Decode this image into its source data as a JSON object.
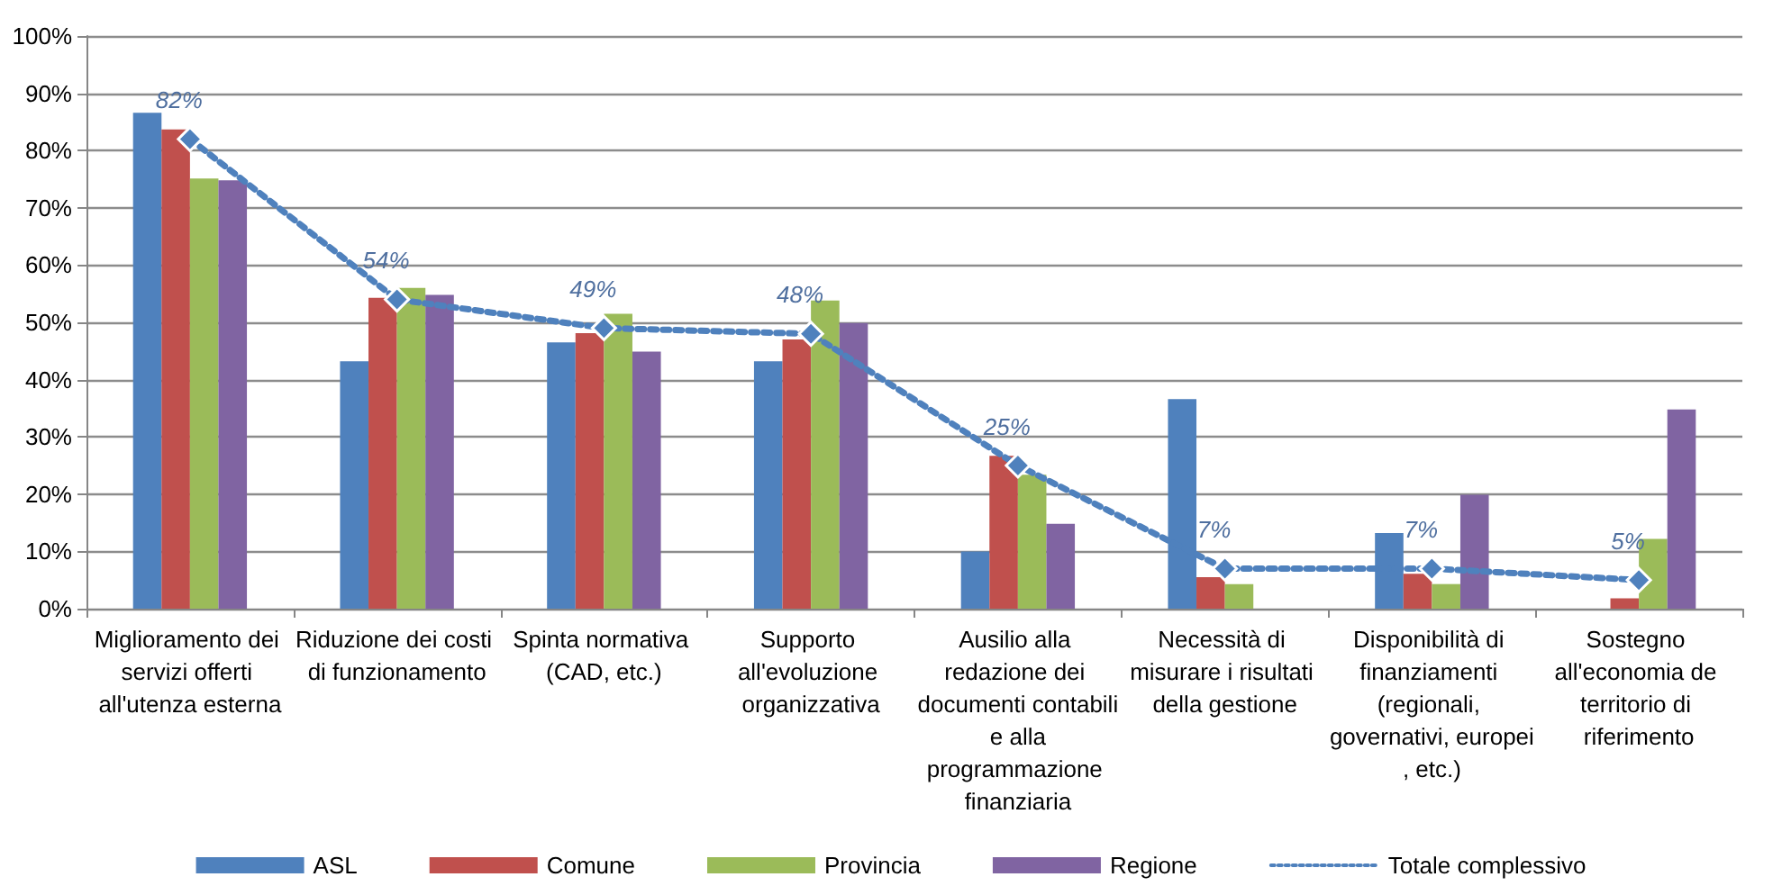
{
  "chart_data": {
    "type": "bar",
    "categories": [
      "Miglioramento dei servizi offerti all'utenza esterna",
      "Riduzione dei costi di funzionamento",
      "Spinta normativa (CAD, etc.)",
      "Supporto all'evoluzione organizzativa",
      "Ausilio alla redazione dei documenti contabili e alla programmazione finanziaria",
      "Necessità di misurare i risultati della gestione",
      "Disponibilità di finanziamenti (regionali, governativi, europei, etc.)",
      "Sostegno all'economia de territorio di riferimento"
    ],
    "series": [
      {
        "name": "ASL",
        "color": "#4f81bd",
        "values": [
          86.6,
          43.2,
          46.5,
          43.2,
          10,
          36.6,
          13.2,
          null
        ]
      },
      {
        "name": "Comune",
        "color": "#c0504d",
        "values": [
          83.7,
          54.3,
          48.1,
          47,
          26.7,
          5.5,
          6.1,
          1.8
        ]
      },
      {
        "name": "Provincia",
        "color": "#9bbb59",
        "values": [
          75.1,
          56,
          51.5,
          53.8,
          23.4,
          4.3,
          4.3,
          12.2
        ]
      },
      {
        "name": "Regione",
        "color": "#8064a2",
        "values": [
          74.8,
          54.8,
          44.9,
          49.9,
          14.8,
          null,
          19.9,
          34.8
        ]
      },
      {
        "name": "Totale complessivo",
        "type": "line",
        "color": "#4f81bd",
        "marker": "diamond",
        "line_style": "dotted",
        "values": [
          82,
          54,
          49,
          48,
          25,
          7,
          7,
          5
        ],
        "value_labels": [
          "82%",
          "54%",
          "49%",
          "48%",
          "25%",
          "7%",
          "7%",
          "5%"
        ]
      }
    ],
    "ylim": [
      0,
      100
    ],
    "yticks": [
      {
        "value": 0,
        "label": "0%"
      },
      {
        "value": 10,
        "label": "10%"
      },
      {
        "value": 20,
        "label": "20%"
      },
      {
        "value": 30,
        "label": "30%"
      },
      {
        "value": 40,
        "label": "40%"
      },
      {
        "value": 50,
        "label": "50%"
      },
      {
        "value": 60,
        "label": "60%"
      },
      {
        "value": 70,
        "label": "70%"
      },
      {
        "value": 80,
        "label": "80%"
      },
      {
        "value": 90,
        "label": "90%"
      },
      {
        "value": 100,
        "label": "100%"
      }
    ],
    "grid": "y",
    "legend": "bottom"
  }
}
